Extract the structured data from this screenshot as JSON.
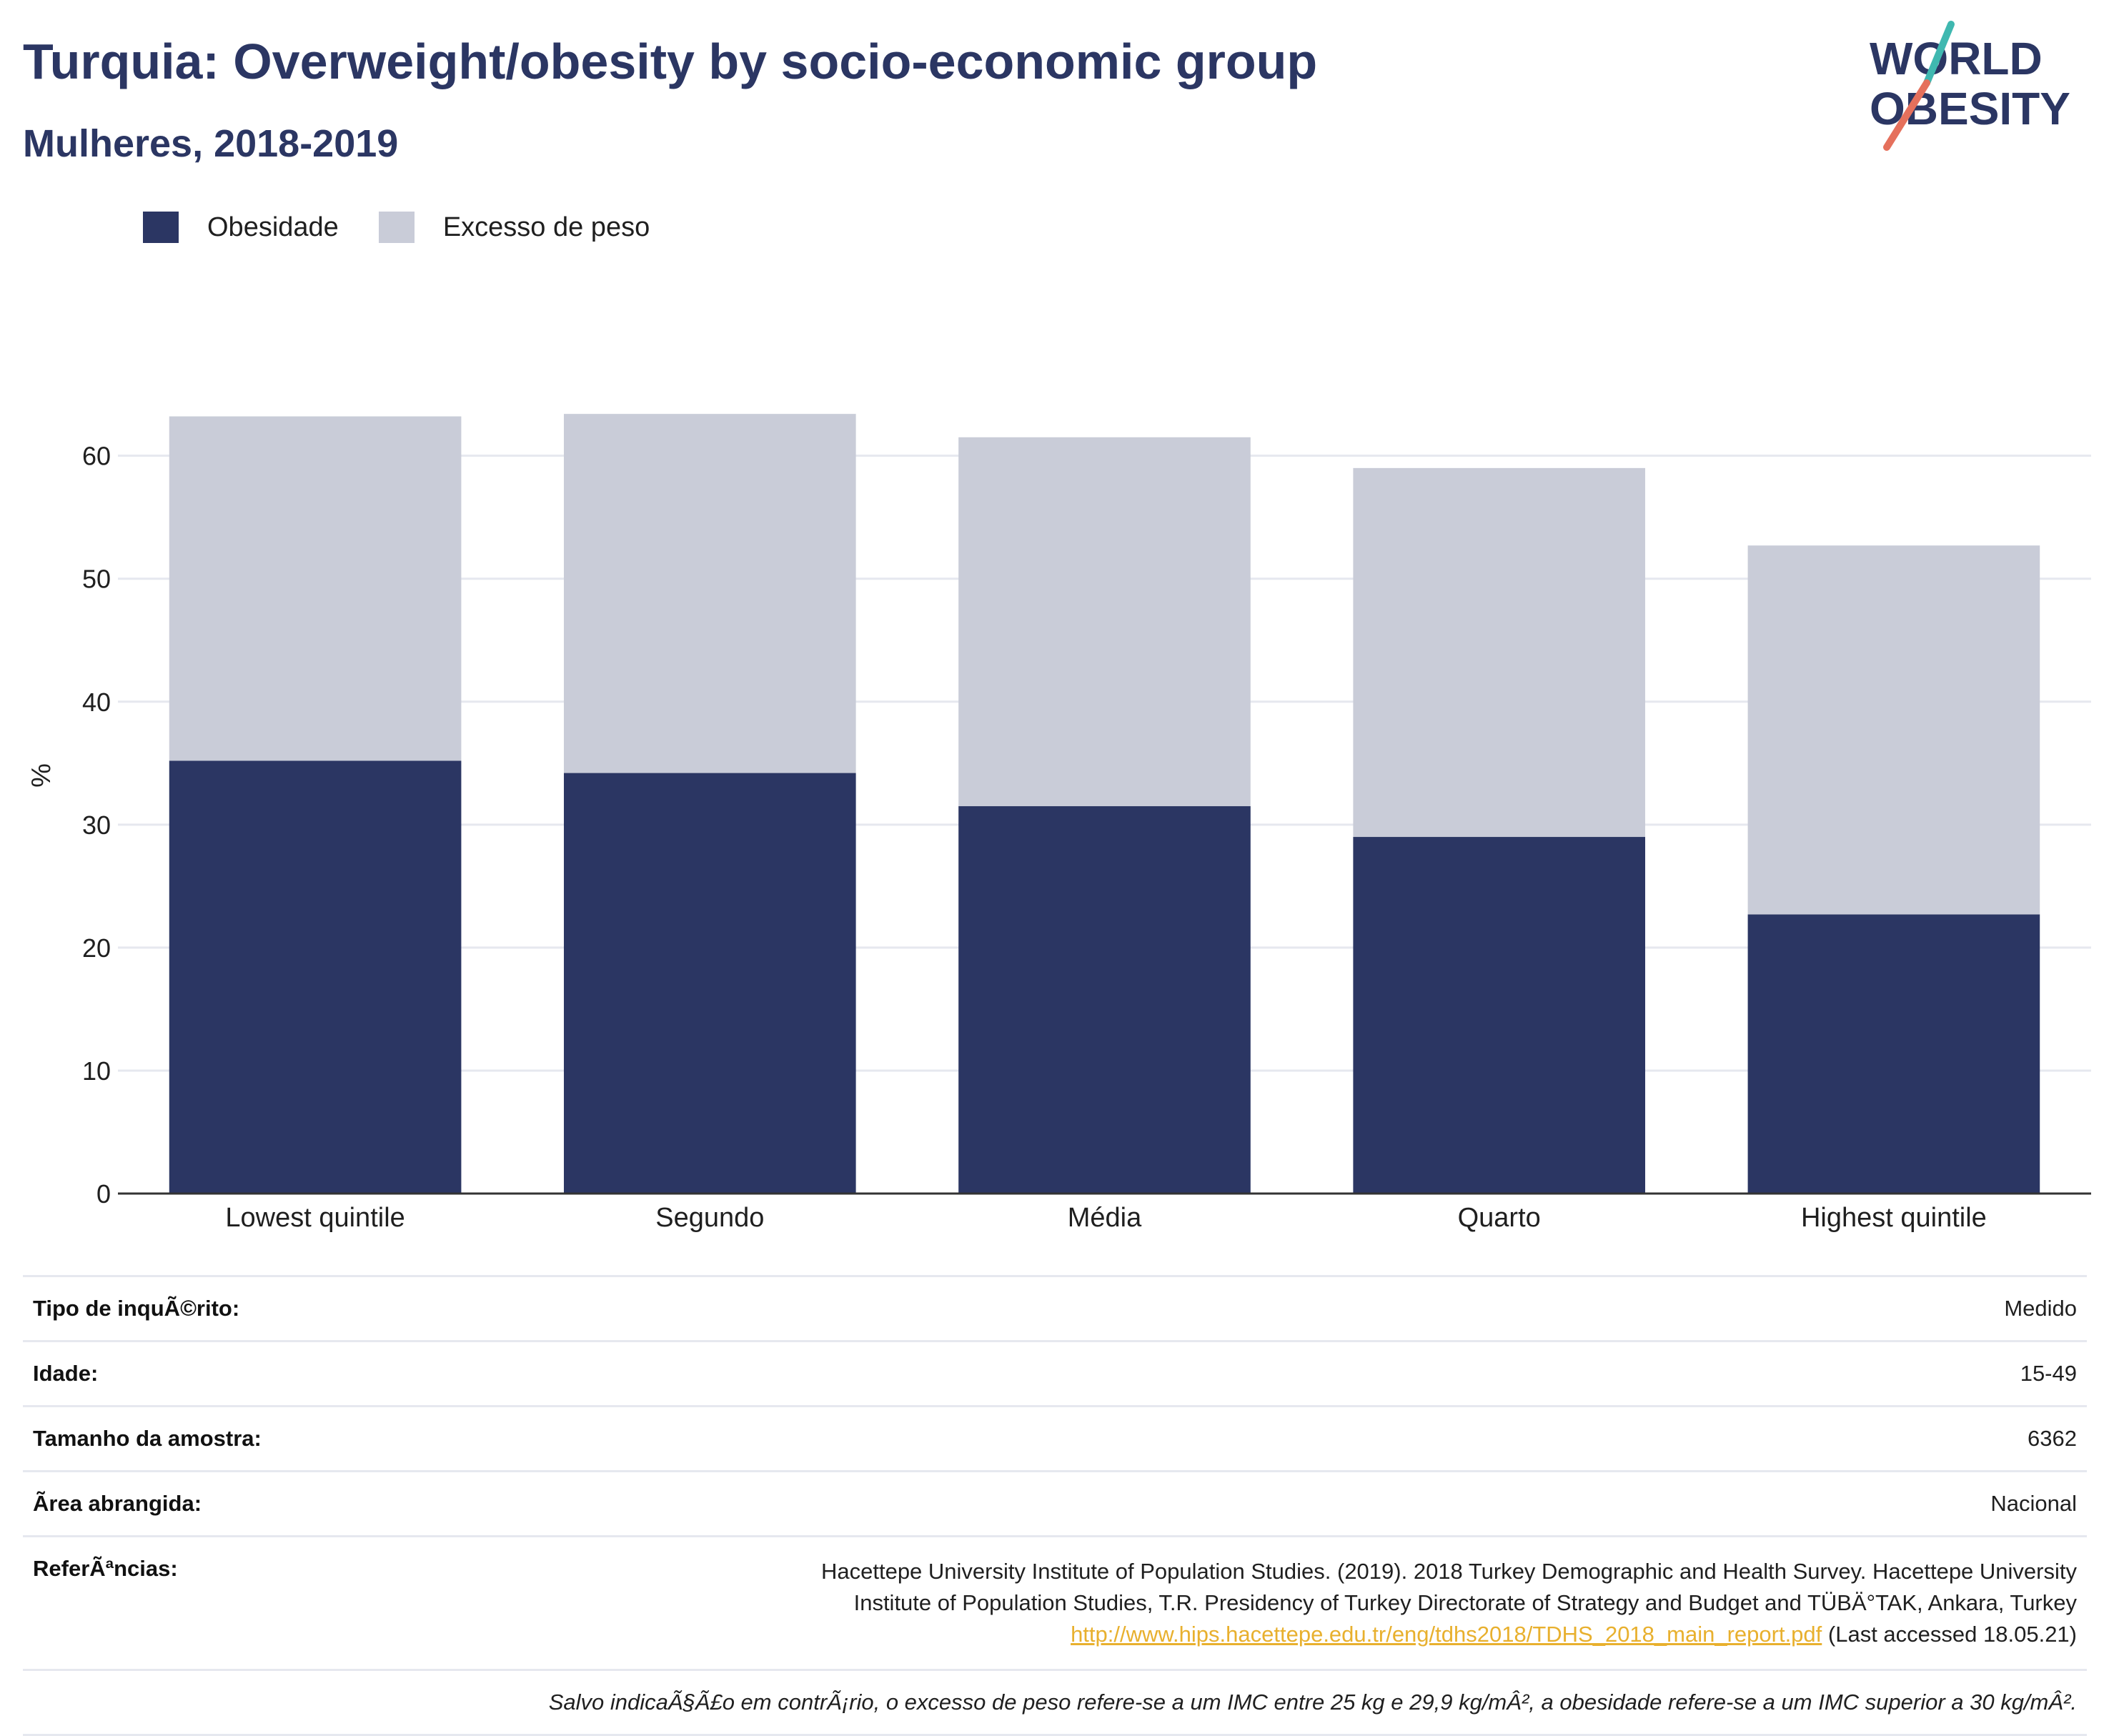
{
  "header": {
    "title": "Turquia: Overweight/obesity by socio-economic group",
    "subtitle": "Mulheres, 2018-2019"
  },
  "logo": {
    "line1": "WORLD",
    "line2": "OBESITY"
  },
  "colors": {
    "title": "#2b3663",
    "obesity": "#2b3663",
    "overweight": "#c9ccd8",
    "grid": "#e6e8ef",
    "logo_teal": "#3fb8b0",
    "logo_coral": "#e5705c",
    "link": "#e8b02e"
  },
  "chart_data": {
    "type": "bar",
    "stacked": true,
    "categories": [
      "Lowest quintile",
      "Segundo",
      "Média",
      "Quarto",
      "Highest quintile"
    ],
    "series": [
      {
        "name": "Obesidade",
        "values": [
          35.2,
          34.2,
          31.5,
          29.0,
          22.7
        ]
      },
      {
        "name": "Excesso de peso",
        "values": [
          28.0,
          29.2,
          30.0,
          30.0,
          30.0
        ]
      }
    ],
    "ylabel": "%",
    "xlabel": "",
    "ylim": [
      0,
      68
    ],
    "yticks": [
      0,
      10,
      20,
      30,
      40,
      50,
      60
    ],
    "grid": true,
    "legend_position": "top-left"
  },
  "info": {
    "survey_type": {
      "label": "Tipo de inquÃ©rito:",
      "value": "Medido"
    },
    "age": {
      "label": "Idade:",
      "value": "15-49"
    },
    "sample_size": {
      "label": "Tamanho da amostra:",
      "value": "6362"
    },
    "area": {
      "label": "Ã\u001frea abrangida:",
      "value": "Nacional"
    },
    "references": {
      "label": "ReferÃªncias:",
      "line1": "Hacettepe University Institute of Population Studies. (2019). 2018 Turkey Demographic and Health Survey. Hacettepe University",
      "line2": "Institute of Population Studies, T.R. Presidency of Turkey Directorate of Strategy and Budget and TÜBÄ°TAK, Ankara, Turkey",
      "link": "http://www.hips.hacettepe.edu.tr/eng/tdhs2018/TDHS_2018_main_report.pdf",
      "accessed": " (Last accessed 18.05.21)"
    }
  },
  "footnote": "Salvo indicaÃ§Ã£o em contrÃ¡rio, o excesso de peso refere-se a um IMC entre 25 kg e 29,9 kg/mÂ², a obesidade refere-se a um IMC superior a 30 kg/mÂ²."
}
